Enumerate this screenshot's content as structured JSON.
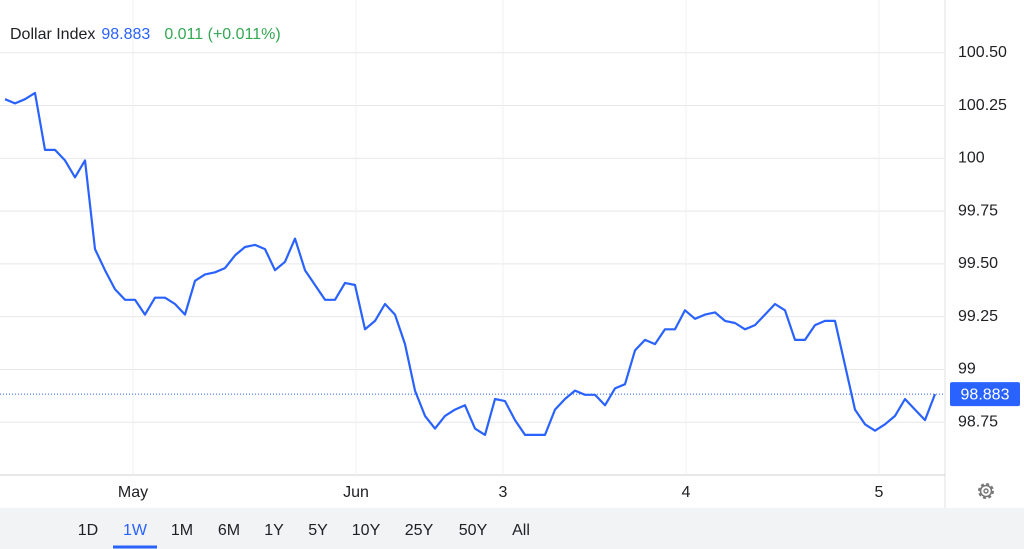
{
  "chart_data": {
    "type": "line",
    "title": "Dollar Index",
    "last_value": 98.883,
    "change": "0.011 (+0.011%)",
    "color": "#2962ff",
    "change_color": "#34a853",
    "x": [
      0,
      1,
      2,
      3,
      4,
      5,
      6,
      7,
      8,
      9,
      10,
      11,
      12,
      13,
      14,
      15,
      16,
      17,
      18,
      19,
      20,
      21,
      22,
      23,
      24,
      25,
      26,
      27,
      28,
      29,
      30,
      31,
      32,
      33,
      34,
      35,
      36,
      37,
      38,
      39,
      40,
      41,
      42,
      43,
      44,
      45,
      46,
      47,
      48,
      49,
      50,
      51,
      52,
      53,
      54,
      55,
      56,
      57,
      58,
      59,
      60,
      61,
      62,
      63,
      64,
      65,
      66,
      67,
      68,
      69,
      70,
      71,
      72,
      73,
      74,
      75,
      76,
      77,
      78,
      79,
      80,
      81,
      82,
      83,
      84,
      85,
      86,
      87,
      88,
      89,
      90,
      91,
      92,
      93
    ],
    "values": [
      100.28,
      100.26,
      100.28,
      100.31,
      100.04,
      100.04,
      99.99,
      99.91,
      99.99,
      99.57,
      99.47,
      99.38,
      99.33,
      99.33,
      99.26,
      99.34,
      99.34,
      99.31,
      99.26,
      99.42,
      99.45,
      99.46,
      99.48,
      99.54,
      99.58,
      99.59,
      99.57,
      99.47,
      99.51,
      99.62,
      99.47,
      99.4,
      99.33,
      99.33,
      99.41,
      99.4,
      99.19,
      99.23,
      99.31,
      99.26,
      99.12,
      98.9,
      98.78,
      98.72,
      98.78,
      98.81,
      98.83,
      98.72,
      98.69,
      98.86,
      98.85,
      98.76,
      98.69,
      98.69,
      98.69,
      98.81,
      98.86,
      98.9,
      98.88,
      98.88,
      98.83,
      98.91,
      98.93,
      99.09,
      99.14,
      99.12,
      99.19,
      99.19,
      99.28,
      99.24,
      99.26,
      99.27,
      99.23,
      99.22,
      99.19,
      99.21,
      99.26,
      99.31,
      99.28,
      99.14,
      99.14,
      99.21,
      99.23,
      99.23,
      99.02,
      98.81,
      98.74,
      98.71,
      98.74,
      98.78,
      98.86,
      98.81,
      98.76,
      98.883
    ],
    "xlim": [
      -0.5,
      94
    ],
    "xticks": [
      {
        "value": 12.8,
        "label": "May"
      },
      {
        "value": 35.1,
        "label": "Jun"
      },
      {
        "value": 49.8,
        "label": "3"
      },
      {
        "value": 68.1,
        "label": "4"
      },
      {
        "value": 87.4,
        "label": "5"
      }
    ],
    "ylim": [
      98.5,
      100.75
    ],
    "yticks": [
      98.75,
      99,
      99.25,
      {
        "value": 99.5,
        "label": "99.50"
      },
      99.75,
      100,
      100.25,
      {
        "value": 100.5,
        "label": "100.50"
      }
    ],
    "grid": true
  },
  "range_buttons": [
    "1D",
    "1W",
    "1M",
    "6M",
    "1Y",
    "5Y",
    "10Y",
    "25Y",
    "50Y",
    "All"
  ],
  "selected_range": "1W"
}
